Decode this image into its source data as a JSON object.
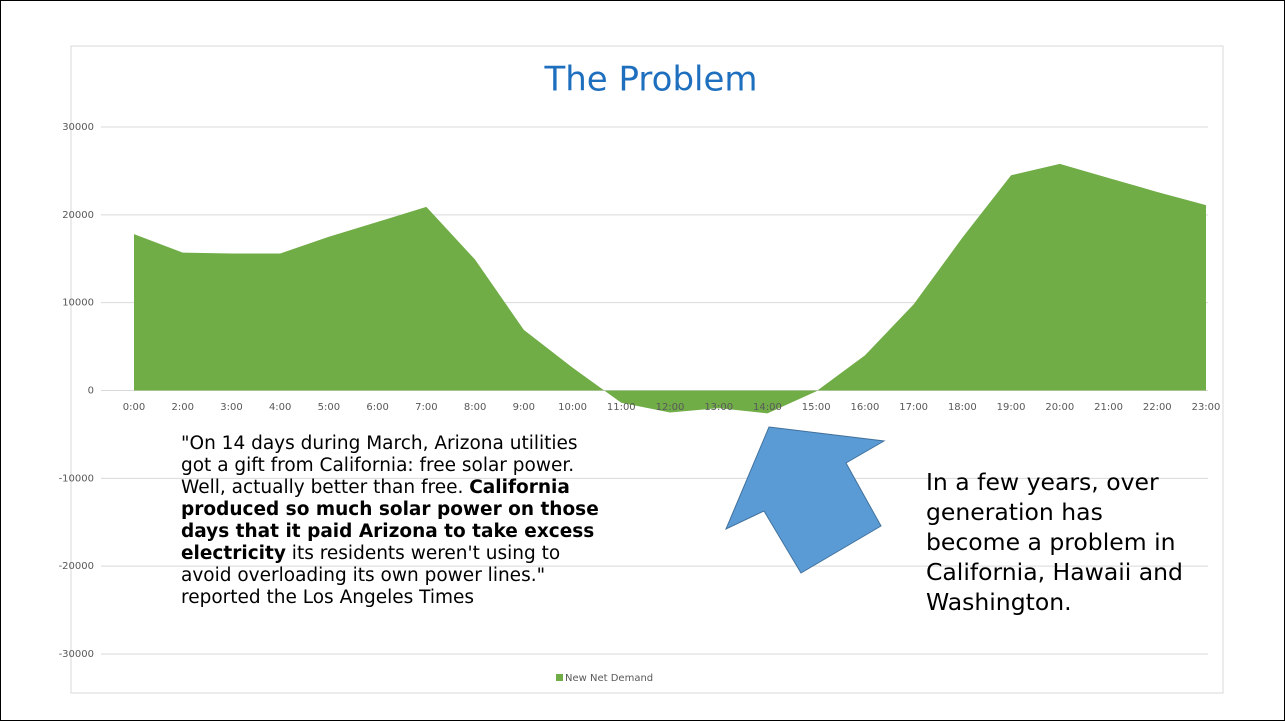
{
  "chart_data": {
    "type": "area",
    "title": "The Problem",
    "categories": [
      "0:00",
      "2:00",
      "3:00",
      "4:00",
      "5:00",
      "6:00",
      "7:00",
      "8:00",
      "9:00",
      "10:00",
      "11:00",
      "12:00",
      "13:00",
      "14:00",
      "15:00",
      "16:00",
      "17:00",
      "18:00",
      "19:00",
      "20:00",
      "21:00",
      "22:00",
      "23:00"
    ],
    "series": [
      {
        "name": "New Net Demand",
        "color": "#70ad47",
        "values": [
          17800,
          15700,
          15600,
          15600,
          17500,
          19200,
          20900,
          14900,
          6900,
          2600,
          -1400,
          -2500,
          -2000,
          -2600,
          -100,
          4000,
          9800,
          17400,
          24500,
          25800,
          24200,
          22600,
          21100
        ]
      }
    ],
    "ylim": [
      -30000,
      30000
    ],
    "yticks": [
      -30000,
      -20000,
      -10000,
      0,
      10000,
      20000,
      30000
    ],
    "grid": true,
    "legend": "bottom",
    "annotations": {
      "quote": {
        "before": "\"On 14 days during March, Arizona utilities got a gift from California: free solar power. Well, actually better than free. ",
        "bold": "California produced so much solar power on those days that it paid Arizona to take excess electricity",
        "after": " its residents weren't using to avoid overloading its own power lines.\" reported the Los Angeles Times"
      },
      "note": "In a few years, over generation has become a problem in California, Hawaii and Washington."
    }
  }
}
